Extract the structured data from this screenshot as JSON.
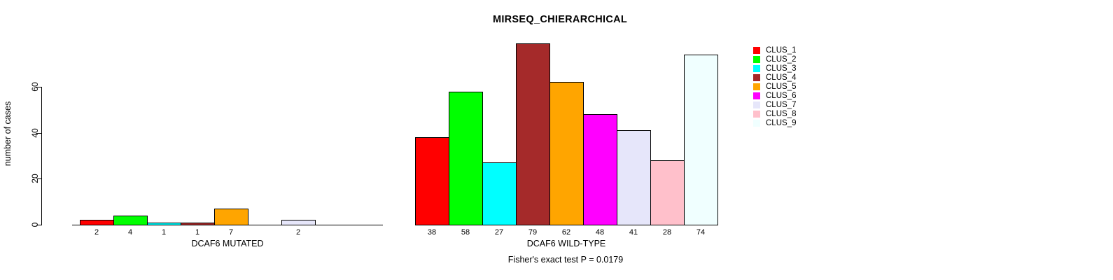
{
  "title": "MIRSEQ_CHIERARCHICAL",
  "footer": {
    "fisher_test": "Fisher's exact test P = 0.0179"
  },
  "axis": {
    "y_label": "number of cases",
    "y_ticks": [
      0,
      20,
      40,
      60
    ]
  },
  "legend": {
    "position": "right",
    "entries": [
      {
        "label": "CLUS_1",
        "color": "#FF0000"
      },
      {
        "label": "CLUS_2",
        "color": "#00FF00"
      },
      {
        "label": "CLUS_3",
        "color": "#00FFFF"
      },
      {
        "label": "CLUS_4",
        "color": "#A52A2A"
      },
      {
        "label": "CLUS_5",
        "color": "#FFA500"
      },
      {
        "label": "CLUS_6",
        "color": "#FF00FF"
      },
      {
        "label": "CLUS_7",
        "color": "#E6E6FA"
      },
      {
        "label": "CLUS_8",
        "color": "#FFC0CB"
      },
      {
        "label": "CLUS_9",
        "color": "#F0FFFF"
      }
    ]
  },
  "chart_data": [
    {
      "type": "bar",
      "panel": "left",
      "title": "MIRSEQ_CHIERARCHICAL",
      "xlabel": "DCAF6 MUTATED",
      "ylabel": "number of cases",
      "categories": [
        "CLUS_1",
        "CLUS_2",
        "CLUS_3",
        "CLUS_4",
        "CLUS_5",
        "CLUS_6",
        "CLUS_7",
        "CLUS_8",
        "CLUS_9"
      ],
      "values": [
        2,
        4,
        1,
        1,
        7,
        0,
        2,
        0,
        0
      ],
      "bar_labels": [
        "2",
        "4",
        "1",
        "1",
        "7",
        "",
        "2",
        "",
        ""
      ],
      "colors": [
        "#FF0000",
        "#00FF00",
        "#00FFFF",
        "#A52A2A",
        "#FFA500",
        "#FF00FF",
        "#E6E6FA",
        "#FFC0CB",
        "#F0FFFF"
      ],
      "ylim": [
        0,
        79
      ],
      "yticks": [
        0,
        20,
        40,
        60
      ],
      "grid": false,
      "bar_border_color": "#000000"
    },
    {
      "type": "bar",
      "panel": "right",
      "title": "MIRSEQ_CHIERARCHICAL",
      "xlabel": "DCAF6 WILD-TYPE",
      "ylabel": "number of cases",
      "categories": [
        "CLUS_1",
        "CLUS_2",
        "CLUS_3",
        "CLUS_4",
        "CLUS_5",
        "CLUS_6",
        "CLUS_7",
        "CLUS_8",
        "CLUS_9"
      ],
      "values": [
        38,
        58,
        27,
        79,
        62,
        48,
        41,
        28,
        74
      ],
      "bar_labels": [
        "38",
        "58",
        "27",
        "79",
        "62",
        "48",
        "41",
        "28",
        "74"
      ],
      "colors": [
        "#FF0000",
        "#00FF00",
        "#00FFFF",
        "#A52A2A",
        "#FFA500",
        "#FF00FF",
        "#E6E6FA",
        "#FFC0CB",
        "#F0FFFF"
      ],
      "ylim": [
        0,
        79
      ],
      "yticks": [
        0,
        20,
        40,
        60
      ],
      "grid": false,
      "bar_border_color": "#000000"
    }
  ]
}
